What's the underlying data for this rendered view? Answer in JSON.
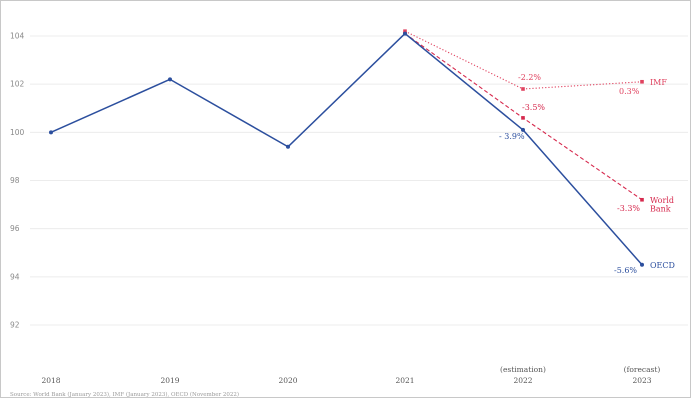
{
  "chart_data": {
    "type": "line",
    "categories": [
      "2018",
      "2019",
      "2020",
      "2021",
      "2022",
      "2023"
    ],
    "category_notes": [
      "",
      "",
      "",
      "",
      "(estimation)",
      "(forecast)"
    ],
    "ylim": [
      90,
      105
    ],
    "yticks": [
      92,
      94,
      96,
      98,
      100,
      102,
      104
    ],
    "grid": true,
    "series": [
      {
        "name": "OECD",
        "values": [
          100.0,
          102.2,
          99.4,
          104.1,
          100.1,
          94.5
        ],
        "color": "#2c4f9e",
        "style": "solid",
        "point_labels": [
          "",
          "",
          "",
          "",
          "- 3.9%",
          "-5.6%"
        ]
      },
      {
        "name": "World Bank",
        "name_lines": [
          "World",
          "Bank"
        ],
        "values": [
          null,
          null,
          null,
          104.1,
          100.6,
          97.2
        ],
        "color": "#d6294d",
        "style": "dashed",
        "point_labels": [
          "",
          "",
          "",
          "",
          "-3.5%",
          "-3.3%"
        ]
      },
      {
        "name": "IMF",
        "values": [
          null,
          null,
          null,
          104.2,
          101.8,
          102.1
        ],
        "color": "#e0425f",
        "style": "dotted",
        "point_labels": [
          "",
          "",
          "",
          "",
          "-2.2%",
          "0.3%"
        ]
      }
    ],
    "source": "Source: World Bank (January 2023), IMF (January 2023), OECD (November 2022)"
  }
}
